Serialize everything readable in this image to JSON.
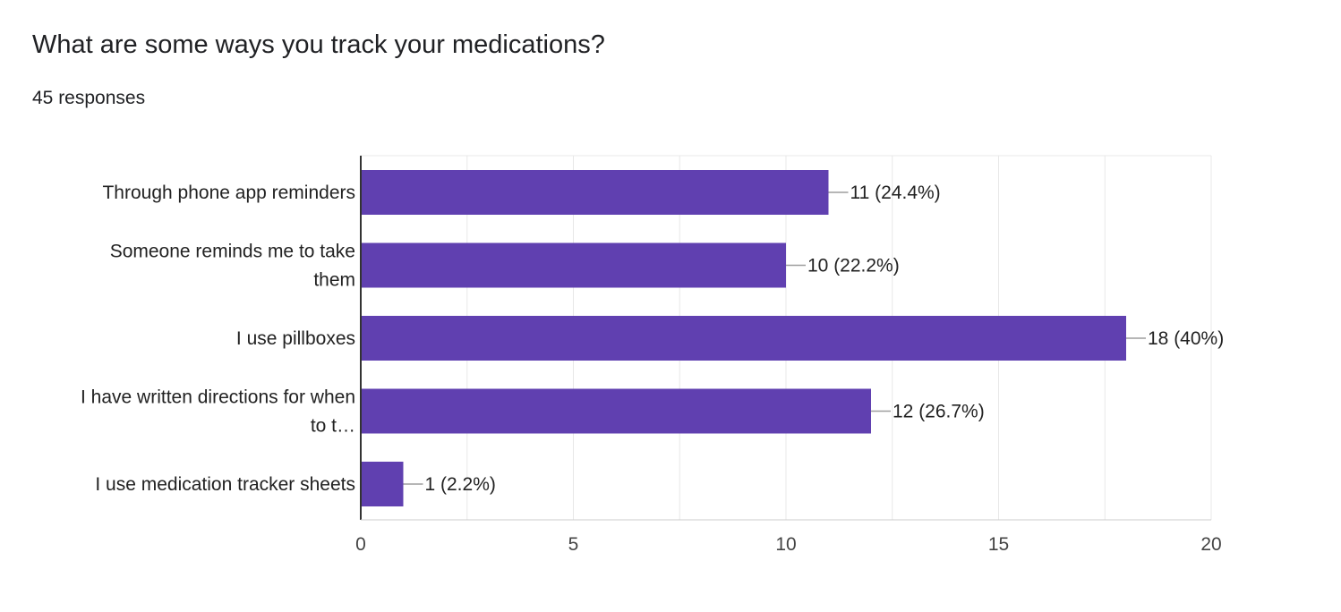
{
  "question": {
    "title": "What are some ways you track your medications?",
    "responses": "45 responses"
  },
  "chart_data": {
    "type": "bar",
    "orientation": "horizontal",
    "categories": [
      [
        "Through phone app reminders"
      ],
      [
        "Someone reminds me to take",
        "them"
      ],
      [
        "I use pillboxes"
      ],
      [
        "I have written directions for when",
        "to t…"
      ],
      [
        "I use medication tracker sheets"
      ]
    ],
    "values": [
      11,
      10,
      18,
      12,
      1
    ],
    "data_labels": [
      "11 (24.4%)",
      "10 (22.2%)",
      "18 (40%)",
      "12 (26.7%)",
      "1 (2.2%)"
    ],
    "xlim": [
      0,
      20
    ],
    "x_ticks": [
      0,
      5,
      10,
      15,
      20
    ],
    "x_tick_labels": [
      "0",
      "5",
      "10",
      "15",
      "20"
    ],
    "grid": true,
    "bar_color": "#6040b0",
    "gridline_color": "#e8e8e8",
    "axis_color": "#333333",
    "leader_color": "#9e9e9e"
  }
}
